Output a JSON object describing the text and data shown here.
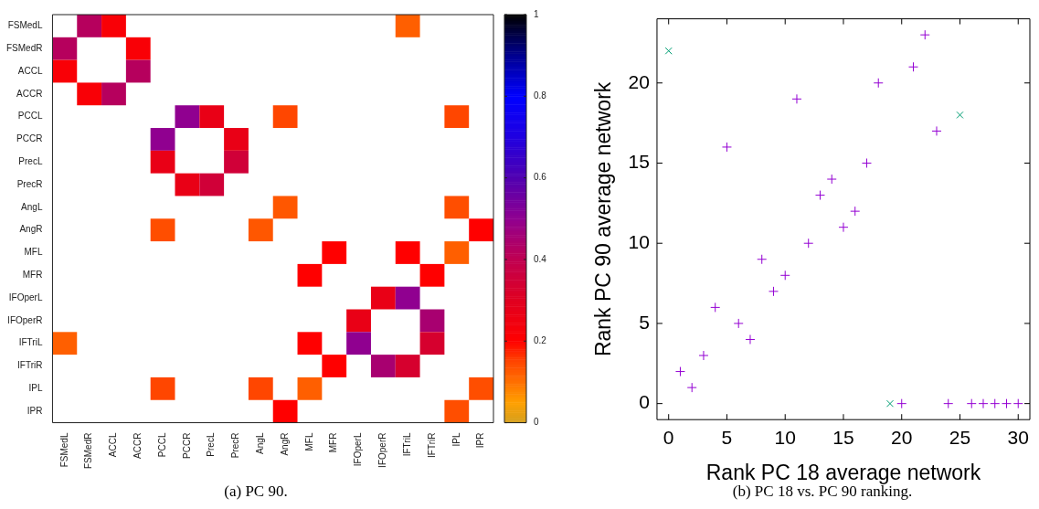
{
  "chart_data": [
    {
      "type": "heatmap",
      "annotations": [
        "(a) PC 90."
      ],
      "categories": [
        "FSMedL",
        "FSMedR",
        "ACCL",
        "ACCR",
        "PCCL",
        "PCCR",
        "PrecL",
        "PrecR",
        "AngL",
        "AngR",
        "MFL",
        "MFR",
        "IFOperL",
        "IFOperR",
        "IFTriL",
        "IFTriR",
        "IPL",
        "IPR"
      ],
      "y_categories": [
        "FSMedL",
        "FSMedR",
        "ACCL",
        "ACCR",
        "PCCL",
        "PCCR",
        "PrecL",
        "PrecR",
        "AngL",
        "AngR",
        "MFL",
        "MFR",
        "IFOperL",
        "IFOperR",
        "IFTriL",
        "IFTriR",
        "IPL",
        "IPR"
      ],
      "cells": [
        [
          null,
          0.42,
          0.22,
          null,
          null,
          null,
          null,
          null,
          null,
          null,
          null,
          null,
          null,
          null,
          0.12,
          null,
          null,
          null
        ],
        [
          0.42,
          null,
          null,
          0.22,
          null,
          null,
          null,
          null,
          null,
          null,
          null,
          null,
          null,
          null,
          null,
          null,
          null,
          null
        ],
        [
          0.22,
          null,
          null,
          0.42,
          null,
          null,
          null,
          null,
          null,
          null,
          null,
          null,
          null,
          null,
          null,
          null,
          null,
          null
        ],
        [
          null,
          0.22,
          0.42,
          null,
          null,
          null,
          null,
          null,
          null,
          null,
          null,
          null,
          null,
          null,
          null,
          null,
          null,
          null
        ],
        [
          null,
          null,
          null,
          null,
          null,
          0.5,
          0.27,
          null,
          null,
          0.15,
          null,
          null,
          null,
          null,
          null,
          null,
          0.15,
          null
        ],
        [
          null,
          null,
          null,
          null,
          0.5,
          null,
          null,
          0.27,
          null,
          null,
          null,
          null,
          null,
          null,
          null,
          null,
          null,
          null
        ],
        [
          null,
          null,
          null,
          null,
          0.27,
          null,
          null,
          0.35,
          null,
          null,
          null,
          null,
          null,
          null,
          null,
          null,
          null,
          null
        ],
        [
          null,
          null,
          null,
          null,
          null,
          0.27,
          0.35,
          null,
          null,
          null,
          null,
          null,
          null,
          null,
          null,
          null,
          null,
          null
        ],
        [
          null,
          null,
          null,
          null,
          null,
          null,
          null,
          null,
          null,
          0.13,
          null,
          null,
          null,
          null,
          null,
          null,
          0.14,
          null
        ],
        [
          null,
          null,
          null,
          null,
          0.14,
          null,
          null,
          null,
          0.13,
          null,
          null,
          null,
          null,
          null,
          null,
          null,
          null,
          0.2
        ],
        [
          null,
          null,
          null,
          null,
          null,
          null,
          null,
          null,
          null,
          null,
          null,
          0.2,
          null,
          null,
          0.2,
          null,
          0.12,
          null
        ],
        [
          null,
          null,
          null,
          null,
          null,
          null,
          null,
          null,
          null,
          null,
          0.2,
          null,
          null,
          null,
          null,
          0.2,
          null,
          null
        ],
        [
          null,
          null,
          null,
          null,
          null,
          null,
          null,
          null,
          null,
          null,
          null,
          null,
          null,
          0.27,
          0.5,
          null,
          null,
          null
        ],
        [
          null,
          null,
          null,
          null,
          null,
          null,
          null,
          null,
          null,
          null,
          null,
          null,
          0.27,
          null,
          null,
          0.45,
          null,
          null
        ],
        [
          0.12,
          null,
          null,
          null,
          null,
          null,
          null,
          null,
          null,
          null,
          0.2,
          null,
          0.5,
          null,
          null,
          0.33,
          null,
          null
        ],
        [
          null,
          null,
          null,
          null,
          null,
          null,
          null,
          null,
          null,
          null,
          null,
          0.2,
          null,
          0.45,
          0.33,
          null,
          null,
          null
        ],
        [
          null,
          null,
          null,
          null,
          0.15,
          null,
          null,
          null,
          0.15,
          null,
          0.12,
          null,
          null,
          null,
          null,
          null,
          null,
          0.14
        ],
        [
          null,
          null,
          null,
          null,
          null,
          null,
          null,
          null,
          null,
          0.2,
          null,
          null,
          null,
          null,
          null,
          null,
          0.14,
          null
        ]
      ],
      "clim": [
        0,
        1
      ],
      "cticks": [
        0,
        0.2,
        0.4,
        0.6,
        0.8,
        1
      ]
    },
    {
      "type": "scatter",
      "annotations": [
        "(b) PC 18 vs. PC 90 ranking."
      ],
      "xlabel": "Rank PC 18 average network",
      "ylabel": "Rank PC 90 average network",
      "series": [
        {
          "color": "#9400d3",
          "marker": "cross",
          "x": [
            1,
            2,
            3,
            4,
            5,
            6,
            7,
            8,
            9,
            10,
            11,
            12,
            13,
            14,
            15,
            16,
            17,
            18,
            20,
            21,
            22,
            23,
            24,
            26,
            27,
            28,
            29,
            30
          ],
          "values": [
            2,
            1,
            3,
            6,
            16,
            5,
            4,
            9,
            7,
            8,
            19,
            10,
            13,
            14,
            11,
            12,
            15,
            20,
            0,
            21,
            23,
            17,
            0,
            0,
            0,
            0,
            0,
            0
          ]
        },
        {
          "color": "#009e73",
          "marker": "cross",
          "x": [
            0,
            19,
            25
          ],
          "values": [
            22,
            0,
            18
          ]
        }
      ],
      "xlim": [
        -1,
        31
      ],
      "xticks": [
        0,
        5,
        10,
        15,
        20,
        25,
        30
      ],
      "ylim": [
        -1,
        24
      ],
      "yticks": [
        0,
        5,
        10,
        15,
        20
      ]
    }
  ]
}
